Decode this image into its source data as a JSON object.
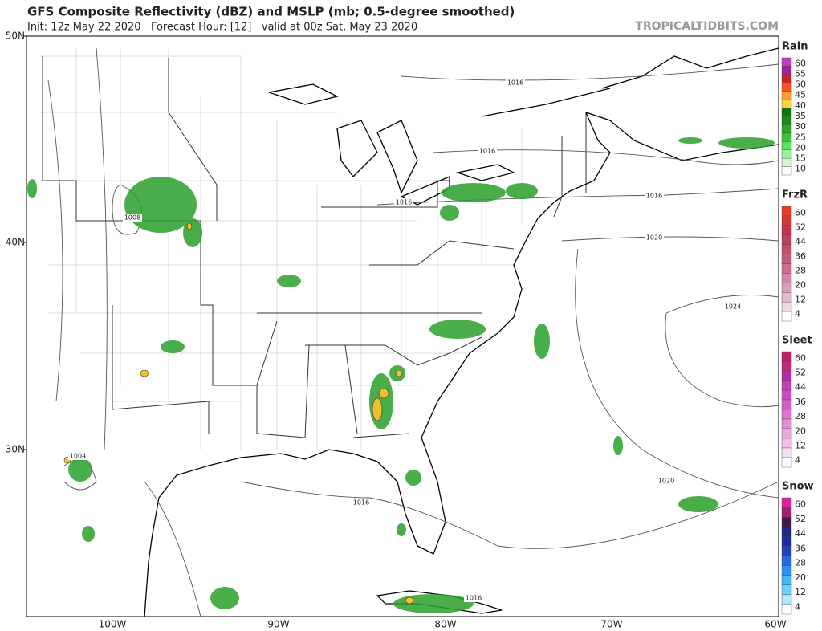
{
  "header": {
    "title": "GFS Composite Reflectivity (dBZ) and MSLP (mb; 0.5-degree smoothed)",
    "subtitle": "Init: 12z May 22 2020   Forecast Hour: [12]   valid at 00z Sat, May 23 2020",
    "watermark": "TROPICALTIDBITS.COM"
  },
  "axes": {
    "lat_labels": [
      "50N",
      "40N",
      "30N"
    ],
    "lon_labels": [
      "100W",
      "90W",
      "80W",
      "70W",
      "60W"
    ]
  },
  "isobar_labels": [
    "1016",
    "1016",
    "1016",
    "1016",
    "1020",
    "1024",
    "1008",
    "1004",
    "1016",
    "1020",
    "1016"
  ],
  "legend": [
    {
      "title": "Rain",
      "ticks": [
        "60",
        "55",
        "50",
        "45",
        "40",
        "35",
        "30",
        "25",
        "20",
        "15",
        "10"
      ],
      "colors": [
        "#c43ac4",
        "#a020a0",
        "#d02020",
        "#ff5020",
        "#ffa030",
        "#ffd040",
        "#107010",
        "#1a8a1a",
        "#2aa82a",
        "#40c040",
        "#60e060",
        "#9af09a",
        "#d0f8d0",
        "#ffffff"
      ]
    },
    {
      "title": "FrzR",
      "ticks": [
        "60",
        "52",
        "44",
        "36",
        "28",
        "20",
        "12",
        "4"
      ],
      "colors": [
        "#e04020",
        "#d03838",
        "#c83050",
        "#c04060",
        "#c05070",
        "#c06080",
        "#c87090",
        "#d088a8",
        "#d8a0b8",
        "#e4b8cc",
        "#f0d8e4",
        "#ffffff"
      ]
    },
    {
      "title": "Sleet",
      "ticks": [
        "60",
        "52",
        "44",
        "36",
        "28",
        "20",
        "12",
        "4"
      ],
      "colors": [
        "#c02060",
        "#c02880",
        "#b030a0",
        "#c040b0",
        "#c850c0",
        "#d060c8",
        "#d878d0",
        "#e090d8",
        "#e8a8e0",
        "#f0c0e8",
        "#f8e0f4",
        "#ffffff"
      ]
    },
    {
      "title": "Snow",
      "ticks": [
        "60",
        "52",
        "44",
        "36",
        "28",
        "20",
        "12",
        "4"
      ],
      "colors": [
        "#e020a0",
        "#a02070",
        "#401850",
        "#202880",
        "#1a2aa0",
        "#2040c0",
        "#2868e0",
        "#3090f0",
        "#40b8f8",
        "#70d0f8",
        "#b0e8fc",
        "#ffffff"
      ]
    }
  ]
}
